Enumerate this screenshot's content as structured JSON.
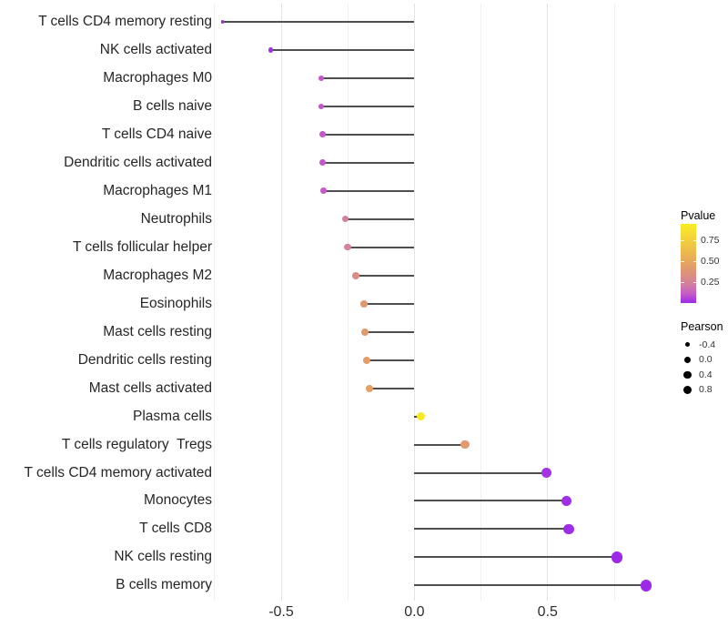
{
  "chart_data": {
    "type": "scatter",
    "style": "lollipop",
    "title": "",
    "xlabel": "",
    "ylabel": "",
    "xlim": [
      -0.8,
      0.95
    ],
    "x_ticks": [
      {
        "value": -0.5,
        "label": "-0.5"
      },
      {
        "value": 0.0,
        "label": "0.0"
      },
      {
        "value": 0.5,
        "label": "0.5"
      }
    ],
    "x_minor_ticks": [
      -0.75,
      -0.25,
      0.25,
      0.75
    ],
    "grid": "vertical-only",
    "points": [
      {
        "label": "T cells CD4 memory resting",
        "pearson": -0.72,
        "pvalue": 0.001
      },
      {
        "label": "NK cells activated",
        "pearson": -0.54,
        "pvalue": 0.012
      },
      {
        "label": "Macrophages M0",
        "pearson": -0.35,
        "pvalue": 0.1
      },
      {
        "label": "B cells naive",
        "pearson": -0.35,
        "pvalue": 0.1
      },
      {
        "label": "T cells CD4 naive",
        "pearson": -0.345,
        "pvalue": 0.105
      },
      {
        "label": "Dendritic cells activated",
        "pearson": -0.345,
        "pvalue": 0.105
      },
      {
        "label": "Macrophages M1",
        "pearson": -0.34,
        "pvalue": 0.11
      },
      {
        "label": "Neutrophils",
        "pearson": -0.26,
        "pvalue": 0.23
      },
      {
        "label": "T cells follicular helper",
        "pearson": -0.25,
        "pvalue": 0.25
      },
      {
        "label": "Macrophages M2",
        "pearson": -0.22,
        "pvalue": 0.31
      },
      {
        "label": "Eosinophils",
        "pearson": -0.19,
        "pvalue": 0.4
      },
      {
        "label": "Mast cells resting",
        "pearson": -0.185,
        "pvalue": 0.42
      },
      {
        "label": "Dendritic cells resting",
        "pearson": -0.18,
        "pvalue": 0.43
      },
      {
        "label": "Mast cells activated",
        "pearson": -0.17,
        "pvalue": 0.46
      },
      {
        "label": "Plasma cells",
        "pearson": 0.025,
        "pvalue": 0.92
      },
      {
        "label": "T cells regulatory  Tregs",
        "pearson": 0.19,
        "pvalue": 0.42
      },
      {
        "label": "T cells CD4 memory activated",
        "pearson": 0.495,
        "pvalue": 0.02
      },
      {
        "label": "Monocytes",
        "pearson": 0.57,
        "pvalue": 0.009
      },
      {
        "label": "T cells CD8",
        "pearson": 0.58,
        "pvalue": 0.008
      },
      {
        "label": "NK cells resting",
        "pearson": 0.76,
        "pvalue": 0.001
      },
      {
        "label": "B cells memory",
        "pearson": 0.87,
        "pvalue": 0.0005
      }
    ],
    "legend": {
      "pvalue": {
        "title": "Pvalue",
        "range": [
          0,
          0.95
        ],
        "ticks": [
          {
            "value": 0.75,
            "label": "0.75"
          },
          {
            "value": 0.5,
            "label": "0.50"
          },
          {
            "value": 0.25,
            "label": "0.25"
          }
        ],
        "gradient_stops": [
          [
            0.0,
            "#9b2ae9"
          ],
          [
            0.115,
            "#c85cc7"
          ],
          [
            0.23,
            "#d37f9f"
          ],
          [
            0.32,
            "#dc8c84"
          ],
          [
            0.46,
            "#e5a163"
          ],
          [
            0.62,
            "#edbb4b"
          ],
          [
            0.78,
            "#f3d339"
          ],
          [
            0.95,
            "#f9ee21"
          ]
        ]
      },
      "pearson": {
        "title": "Pearson",
        "items": [
          {
            "value": -0.4,
            "label": "-0.4"
          },
          {
            "value": 0.0,
            "label": "0.0"
          },
          {
            "value": 0.4,
            "label": "0.4"
          },
          {
            "value": 0.8,
            "label": "0.8"
          }
        ]
      }
    },
    "colors": {
      "stem": "#4f4f4f",
      "grid_major": "#e3e3e3",
      "grid_minor": "#f0f0f0",
      "axis_text": "#2e2e2e",
      "legend_dot": "#000000",
      "background": "#ffffff"
    }
  }
}
